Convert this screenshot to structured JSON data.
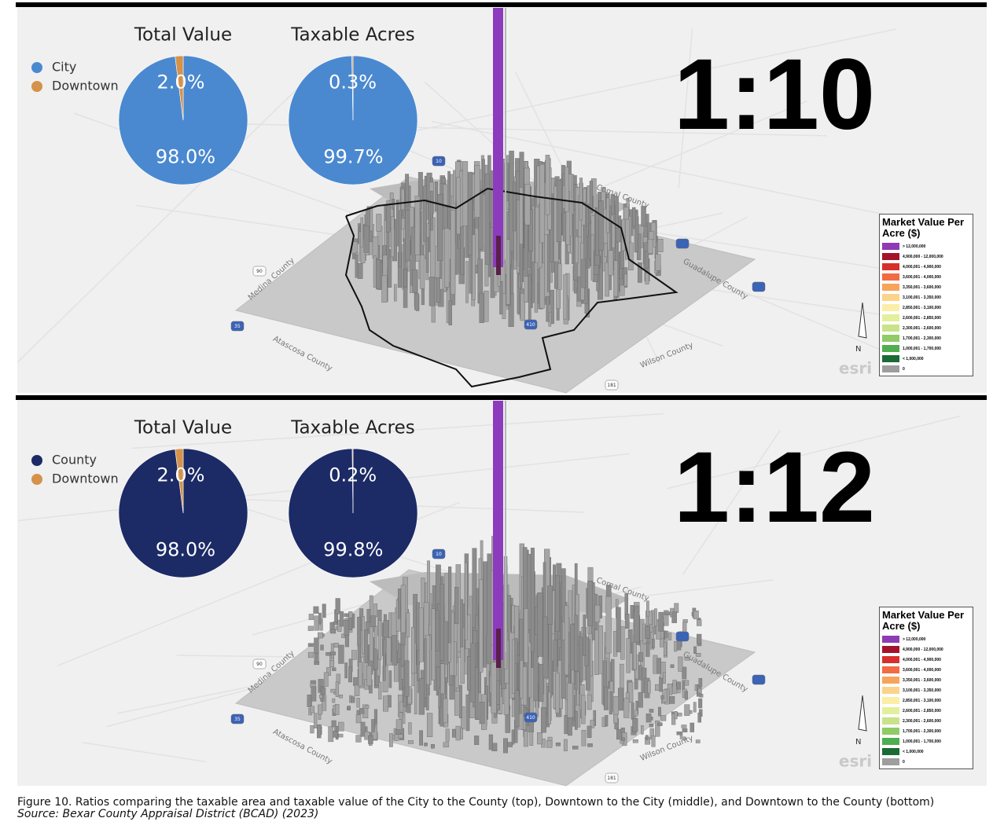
{
  "chart_data": [
    {
      "type": "pie",
      "title": "Total Value",
      "categories": [
        "City",
        "Downtown"
      ],
      "values": [
        98.0,
        2.0
      ],
      "value_labels": [
        "98.0%",
        "2.0%"
      ],
      "colors": [
        "#4a89d0",
        "#d4924a"
      ]
    },
    {
      "type": "pie",
      "title": "Taxable Acres",
      "categories": [
        "City",
        "Downtown"
      ],
      "values": [
        99.7,
        0.3
      ],
      "value_labels": [
        "99.7%",
        "0.3%"
      ],
      "colors": [
        "#4a89d0",
        "#d4924a"
      ]
    },
    {
      "type": "pie",
      "title": "Total Value",
      "categories": [
        "County",
        "Downtown"
      ],
      "values": [
        98.0,
        2.0
      ],
      "value_labels": [
        "98.0%",
        "2.0%"
      ],
      "colors": [
        "#1c2a66",
        "#d4924a"
      ]
    },
    {
      "type": "pie",
      "title": "Taxable Acres",
      "categories": [
        "County",
        "Downtown"
      ],
      "values": [
        99.8,
        0.2
      ],
      "value_labels": [
        "99.8%",
        "0.2%"
      ],
      "colors": [
        "#1c2a66",
        "#d4924a"
      ]
    }
  ],
  "panels": [
    {
      "ratio": "1:10"
    },
    {
      "ratio": "1:12"
    }
  ],
  "map": {
    "labels": [
      "Comal County",
      "Guadalupe County",
      "Wilson County",
      "Atascosa County",
      "Medina County"
    ],
    "shields": [
      "10",
      "35",
      "90",
      "410",
      "181"
    ],
    "compass": "N",
    "credit": "esri"
  },
  "map_legend": {
    "title": "Market Value Per Acre ($)",
    "items": [
      {
        "label": "> 12,000,000",
        "color": "#8e3bb5"
      },
      {
        "label": "4,900,000 - 12,000,000",
        "color": "#a3142c"
      },
      {
        "label": "4,000,001 - 4,900,000",
        "color": "#d7302a"
      },
      {
        "label": "3,600,001 - 4,000,000",
        "color": "#f26b43"
      },
      {
        "label": "3,350,001 - 3,600,000",
        "color": "#f7a35c"
      },
      {
        "label": "3,100,001 - 3,350,000",
        "color": "#fbd38a"
      },
      {
        "label": "2,850,001 - 3,100,000",
        "color": "#fbeea6"
      },
      {
        "label": "2,600,001 - 2,850,000",
        "color": "#e4ef9c"
      },
      {
        "label": "2,300,001 - 2,600,000",
        "color": "#c8e389"
      },
      {
        "label": "1,700,001 - 2,300,000",
        "color": "#8fcb66"
      },
      {
        "label": "1,000,001 - 1,700,000",
        "color": "#4fae4f"
      },
      {
        "label": "< 1,000,000",
        "color": "#1a6b34"
      },
      {
        "label": "0",
        "color": "#9e9e9e"
      }
    ]
  },
  "caption": "Figure 10.  Ratios comparing the taxable area and taxable value of the City to the County (top), Downtown to the City (middle), and Downtown to the County (bottom)",
  "source": "Source: Bexar County Appraisal District (BCAD) (2023)"
}
